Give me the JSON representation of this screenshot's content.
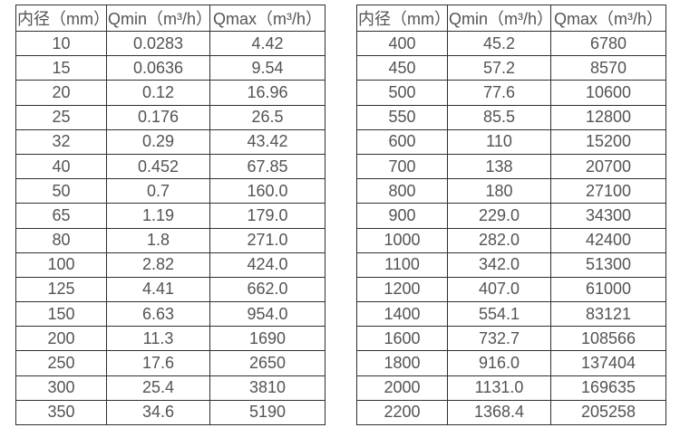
{
  "page": {
    "description_label": "flow-range-tables"
  },
  "chart_data": [
    {
      "type": "table",
      "title": "",
      "headers": [
        "内径（mm）",
        "Qmin（m³/h）",
        "Qmax（m³/h）"
      ],
      "rows": [
        [
          "10",
          "0.0283",
          "4.42"
        ],
        [
          "15",
          "0.0636",
          "9.54"
        ],
        [
          "20",
          "0.12",
          "16.96"
        ],
        [
          "25",
          "0.176",
          "26.5"
        ],
        [
          "32",
          "0.29",
          "43.42"
        ],
        [
          "40",
          "0.452",
          "67.85"
        ],
        [
          "50",
          "0.7",
          "160.0"
        ],
        [
          "65",
          "1.19",
          "179.0"
        ],
        [
          "80",
          "1.8",
          "271.0"
        ],
        [
          "100",
          "2.82",
          "424.0"
        ],
        [
          "125",
          "4.41",
          "662.0"
        ],
        [
          "150",
          "6.63",
          "954.0"
        ],
        [
          "200",
          "11.3",
          "1690"
        ],
        [
          "250",
          "17.6",
          "2650"
        ],
        [
          "300",
          "25.4",
          "3810"
        ],
        [
          "350",
          "34.6",
          "5190"
        ]
      ]
    },
    {
      "type": "table",
      "title": "",
      "headers": [
        "内径（mm）",
        "Qmin（m³/h）",
        "Qmax（m³/h）"
      ],
      "rows": [
        [
          "400",
          "45.2",
          "6780"
        ],
        [
          "450",
          "57.2",
          "8570"
        ],
        [
          "500",
          "77.6",
          "10600"
        ],
        [
          "550",
          "85.5",
          "12800"
        ],
        [
          "600",
          "110",
          "15200"
        ],
        [
          "700",
          "138",
          "20700"
        ],
        [
          "800",
          "180",
          "27100"
        ],
        [
          "900",
          "229.0",
          "34300"
        ],
        [
          "1000",
          "282.0",
          "42400"
        ],
        [
          "1100",
          "342.0",
          "51300"
        ],
        [
          "1200",
          "407.0",
          "61000"
        ],
        [
          "1400",
          "554.1",
          "83121"
        ],
        [
          "1600",
          "732.7",
          "108566"
        ],
        [
          "1800",
          "916.0",
          "137404"
        ],
        [
          "2000",
          "1131.0",
          "169635"
        ],
        [
          "2200",
          "1368.4",
          "205258"
        ]
      ]
    }
  ],
  "colors": {
    "border": "#2f2f2f",
    "text": "#545454",
    "background": "#ffffff"
  }
}
